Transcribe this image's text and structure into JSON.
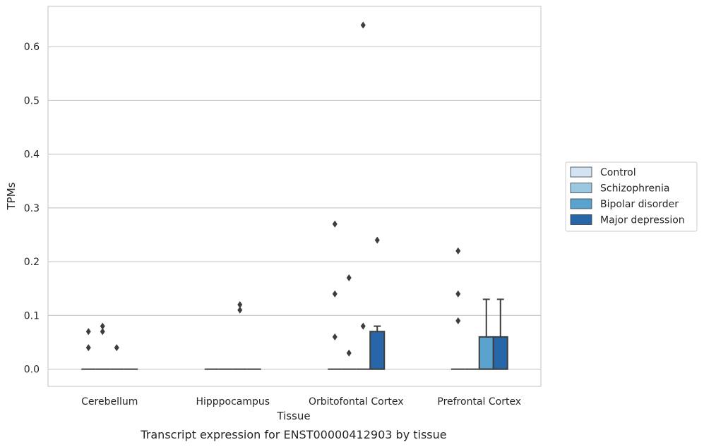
{
  "chart_data": {
    "type": "box",
    "title": "",
    "caption": "Transcript expression for ENST00000412903 by tissue",
    "xlabel": "Tissue",
    "ylabel": "TPMs",
    "ylim": [
      -0.032,
      0.675
    ],
    "yticks": [
      0.0,
      0.1,
      0.2,
      0.3,
      0.4,
      0.5,
      0.6
    ],
    "ytick_labels": [
      "0.0",
      "0.1",
      "0.2",
      "0.3",
      "0.4",
      "0.5",
      "0.6"
    ],
    "grid": "horizontal",
    "legend_position": "right",
    "categories": [
      "Cerebellum",
      "Hipppocampus",
      "Orbitofontal Cortex",
      "Prefrontal Cortex"
    ],
    "series": [
      {
        "name": "Control",
        "color": "#d2e3f3",
        "boxes": [
          {
            "q1": 0,
            "median": 0,
            "q3": 0,
            "whisker_low": 0,
            "whisker_high": 0,
            "outliers": [
              0.04,
              0.07
            ]
          },
          {
            "q1": 0,
            "median": 0,
            "q3": 0,
            "whisker_low": 0,
            "whisker_high": 0,
            "outliers": []
          },
          {
            "q1": 0,
            "median": 0,
            "q3": 0,
            "whisker_low": 0,
            "whisker_high": 0,
            "outliers": [
              0.06,
              0.14,
              0.27
            ]
          },
          {
            "q1": 0,
            "median": 0,
            "q3": 0,
            "whisker_low": 0,
            "whisker_high": 0,
            "outliers": [
              0.09,
              0.14,
              0.22
            ]
          }
        ]
      },
      {
        "name": "Schizophrenia",
        "color": "#9ac8e0",
        "boxes": [
          {
            "q1": 0,
            "median": 0,
            "q3": 0,
            "whisker_low": 0,
            "whisker_high": 0,
            "outliers": [
              0.07,
              0.08
            ]
          },
          {
            "q1": 0,
            "median": 0,
            "q3": 0,
            "whisker_low": 0,
            "whisker_high": 0,
            "outliers": []
          },
          {
            "q1": 0,
            "median": 0,
            "q3": 0,
            "whisker_low": 0,
            "whisker_high": 0,
            "outliers": [
              0.03,
              0.17
            ]
          },
          {
            "q1": 0,
            "median": 0,
            "q3": 0,
            "whisker_low": 0,
            "whisker_high": 0,
            "outliers": []
          }
        ]
      },
      {
        "name": "Bipolar disorder",
        "color": "#5ba3cf",
        "boxes": [
          {
            "q1": 0,
            "median": 0,
            "q3": 0,
            "whisker_low": 0,
            "whisker_high": 0,
            "outliers": [
              0.04
            ]
          },
          {
            "q1": 0,
            "median": 0,
            "q3": 0,
            "whisker_low": 0,
            "whisker_high": 0,
            "outliers": [
              0.11,
              0.12
            ]
          },
          {
            "q1": 0,
            "median": 0,
            "q3": 0,
            "whisker_low": 0,
            "whisker_high": 0,
            "outliers": [
              0.08,
              0.64
            ]
          },
          {
            "q1": 0,
            "median": 0,
            "q3": 0.06,
            "whisker_low": 0,
            "whisker_high": 0.13,
            "outliers": []
          }
        ]
      },
      {
        "name": "Major depression",
        "color": "#2666a9",
        "boxes": [
          {
            "q1": 0,
            "median": 0,
            "q3": 0,
            "whisker_low": 0,
            "whisker_high": 0,
            "outliers": []
          },
          {
            "q1": 0,
            "median": 0,
            "q3": 0,
            "whisker_low": 0,
            "whisker_high": 0,
            "outliers": []
          },
          {
            "q1": 0,
            "median": 0,
            "q3": 0.07,
            "whisker_low": 0,
            "whisker_high": 0.08,
            "outliers": [
              0.24
            ]
          },
          {
            "q1": 0,
            "median": 0,
            "q3": 0.06,
            "whisker_low": 0,
            "whisker_high": 0.13,
            "outliers": []
          }
        ]
      }
    ]
  }
}
